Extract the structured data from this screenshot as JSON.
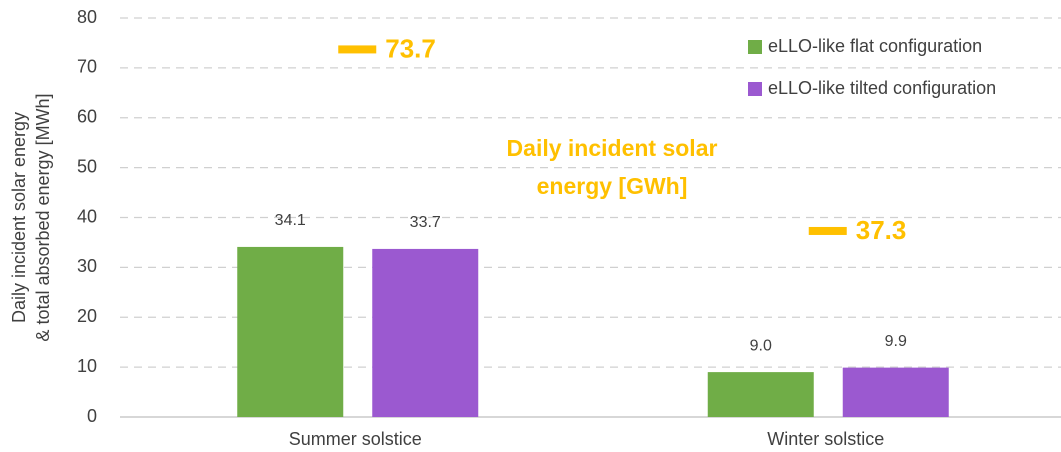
{
  "chart_data": {
    "type": "bar",
    "categories": [
      "Summer solstice",
      "Winter solstice"
    ],
    "ylabel": [
      "Daily incident solar energy",
      "& total absorbed energy [MWh]"
    ],
    "ylim": [
      0,
      80
    ],
    "yticks": [
      0,
      10,
      20,
      30,
      40,
      50,
      60,
      70,
      80
    ],
    "grid": true,
    "legend": "upper right",
    "series": [
      {
        "name": "eLLO-like flat configuration",
        "color": "#70ad47",
        "values": [
          34.1,
          9
        ],
        "value_labels": [
          "34.1",
          "9.0"
        ]
      },
      {
        "name": "eLLO-like tilted configuration",
        "color": "#9b59d0",
        "values": [
          33.7,
          9.9
        ],
        "value_labels": [
          "33.7",
          "9.9"
        ]
      }
    ],
    "markers": {
      "color": "#ffc000",
      "values": [
        73.7,
        37.3
      ]
    },
    "annotation": [
      "Daily incident solar",
      "energy [GWh]"
    ]
  }
}
